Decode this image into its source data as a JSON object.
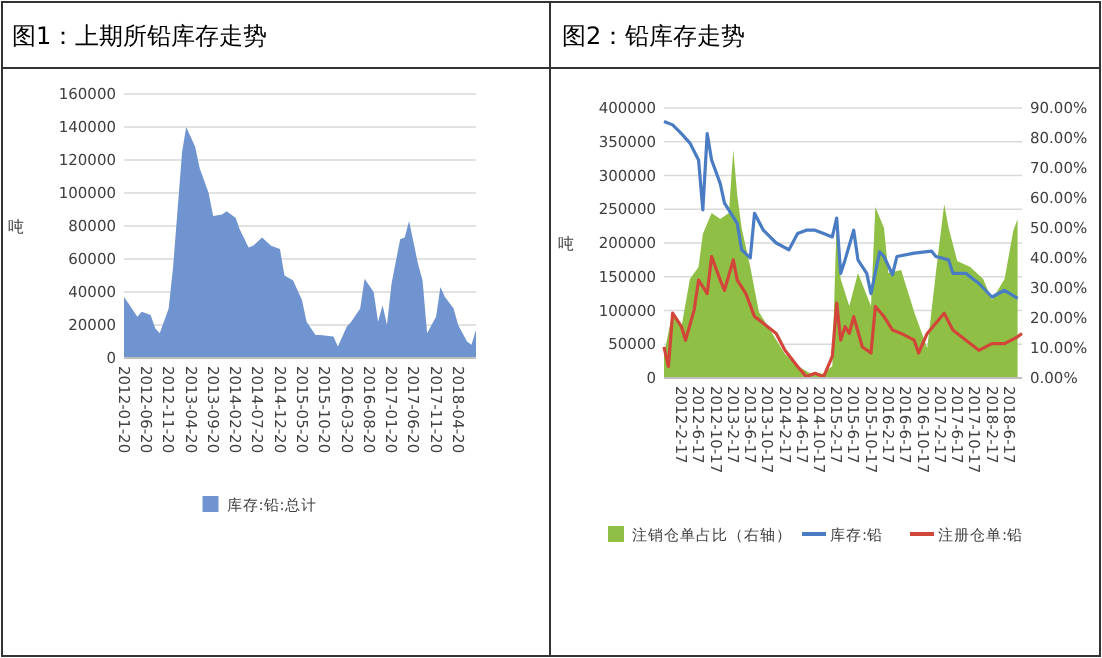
{
  "chart_data": [
    {
      "type": "area",
      "title": "图1：上期所铅库存走势",
      "ylabel": "吨",
      "xlim": [
        "2012-01-20",
        "2018-08-20"
      ],
      "ylim": [
        0,
        160000
      ],
      "yticks": [
        0,
        20000,
        40000,
        60000,
        80000,
        100000,
        120000,
        140000,
        160000
      ],
      "xticks": [
        {
          "value": "2012-01-20",
          "label": "2012-01-20"
        },
        {
          "value": "2012-06-20",
          "label": "2012-06-20"
        },
        {
          "value": "2012-11-20",
          "label": "2012-11-20"
        },
        {
          "value": "2013-04-20",
          "label": "2013-04-20"
        },
        {
          "value": "2013-09-20",
          "label": "2013-09-20"
        },
        {
          "value": "2014-02-20",
          "label": "2014-02-20"
        },
        {
          "value": "2014-07-20",
          "label": "2014-07-20"
        },
        {
          "value": "2014-12-20",
          "label": "2014-12-20"
        },
        {
          "value": "2015-05-20",
          "label": "2015-05-20"
        },
        {
          "value": "2015-10-20",
          "label": "2015-10-20"
        },
        {
          "value": "2016-03-20",
          "label": "2016-03-20"
        },
        {
          "value": "2016-08-20",
          "label": "2016-08-20"
        },
        {
          "value": "2017-01-20",
          "label": "2017-01-20"
        },
        {
          "value": "2017-06-20",
          "label": "2017-06-20"
        },
        {
          "value": "2017-11-20",
          "label": "2017-11-20"
        },
        {
          "value": "2018-04-20",
          "label": "2018-04-20"
        }
      ],
      "grid": "y",
      "legend": "bottom",
      "series": [
        {
          "name": "库存:铅:总计",
          "color": "#6f94cf",
          "x": [
            "2012-01-20",
            "2012-02-20",
            "2012-04-20",
            "2012-05-20",
            "2012-07-20",
            "2012-08-20",
            "2012-09-20",
            "2012-11-20",
            "2012-12-20",
            "2013-01-20",
            "2013-02-20",
            "2013-03-20",
            "2013-05-20",
            "2013-06-20",
            "2013-08-20",
            "2013-09-20",
            "2013-11-20",
            "2013-12-20",
            "2014-02-20",
            "2014-03-20",
            "2014-05-20",
            "2014-06-20",
            "2014-08-20",
            "2014-10-20",
            "2014-12-20",
            "2015-01-20",
            "2015-03-20",
            "2015-05-20",
            "2015-06-20",
            "2015-08-20",
            "2015-09-20",
            "2015-12-20",
            "2016-01-20",
            "2016-03-20",
            "2016-04-20",
            "2016-06-20",
            "2016-07-20",
            "2016-09-20",
            "2016-10-20",
            "2016-11-20",
            "2016-12-20",
            "2017-01-20",
            "2017-03-20",
            "2017-04-20",
            "2017-05-20",
            "2017-07-20",
            "2017-08-20",
            "2017-09-20",
            "2017-11-20",
            "2017-12-20",
            "2018-01-20",
            "2018-03-20",
            "2018-04-20",
            "2018-06-20",
            "2018-07-20",
            "2018-08-20"
          ],
          "values": [
            37000,
            33000,
            25000,
            28000,
            26000,
            18000,
            15000,
            30000,
            55000,
            90000,
            125000,
            140000,
            128000,
            115000,
            100000,
            86000,
            87000,
            89000,
            85000,
            78000,
            67000,
            68000,
            73000,
            68000,
            66000,
            50000,
            47000,
            35000,
            22000,
            14000,
            14000,
            13000,
            7000,
            19000,
            22000,
            30000,
            48000,
            40000,
            22000,
            32000,
            20000,
            45000,
            72000,
            73000,
            83000,
            57000,
            47000,
            15000,
            25000,
            43000,
            37000,
            30000,
            20000,
            10000,
            8000,
            17000
          ]
        }
      ]
    },
    {
      "type": "line",
      "title": "图2：铅库存走势",
      "ylabel": "吨",
      "xlim": [
        "2011-10-17",
        "2018-09-17"
      ],
      "ylim": [
        0,
        400000
      ],
      "yticks": [
        0,
        50000,
        100000,
        150000,
        200000,
        250000,
        300000,
        350000,
        400000
      ],
      "y2lim": [
        0,
        90
      ],
      "y2ticks": [
        {
          "value": 0,
          "label": "0.00%"
        },
        {
          "value": 10,
          "label": "10.00%"
        },
        {
          "value": 20,
          "label": "20.00%"
        },
        {
          "value": 30,
          "label": "30.00%"
        },
        {
          "value": 40,
          "label": "40.00%"
        },
        {
          "value": 50,
          "label": "50.00%"
        },
        {
          "value": 60,
          "label": "60.00%"
        },
        {
          "value": 70,
          "label": "70.00%"
        },
        {
          "value": 80,
          "label": "80.00%"
        },
        {
          "value": 90,
          "label": "90.00%"
        }
      ],
      "xticks": [
        {
          "value": "2012-02-17",
          "label": "2012-2-17"
        },
        {
          "value": "2012-06-17",
          "label": "2012-6-17"
        },
        {
          "value": "2012-10-17",
          "label": "2012-10-17"
        },
        {
          "value": "2013-02-17",
          "label": "2013-2-17"
        },
        {
          "value": "2013-06-17",
          "label": "2013-6-17"
        },
        {
          "value": "2013-10-17",
          "label": "2013-10-17"
        },
        {
          "value": "2014-02-17",
          "label": "2014-2-17"
        },
        {
          "value": "2014-06-17",
          "label": "2014-6-17"
        },
        {
          "value": "2014-10-17",
          "label": "2014-10-17"
        },
        {
          "value": "2015-02-17",
          "label": "2015-2-17"
        },
        {
          "value": "2015-06-17",
          "label": "2015-6-17"
        },
        {
          "value": "2015-10-17",
          "label": "2015-10-17"
        },
        {
          "value": "2016-02-17",
          "label": "2016-2-17"
        },
        {
          "value": "2016-06-17",
          "label": "2016-6-17"
        },
        {
          "value": "2016-10-17",
          "label": "2016-10-17"
        },
        {
          "value": "2017-02-17",
          "label": "2017-2-17"
        },
        {
          "value": "2017-06-17",
          "label": "2017-6-17"
        },
        {
          "value": "2017-10-17",
          "label": "2017-10-17"
        },
        {
          "value": "2018-02-17",
          "label": "2018-2-17"
        },
        {
          "value": "2018-06-17",
          "label": "2018-6-17"
        }
      ],
      "grid": "y",
      "legend": "bottom",
      "series": [
        {
          "name": "注销仓单占比（右轴）",
          "type": "area",
          "axis": "y2",
          "color": "#8fc045",
          "x": [
            "2011-10-17",
            "2011-12-17",
            "2012-02-17",
            "2012-04-17",
            "2012-06-17",
            "2012-07-17",
            "2012-09-17",
            "2012-11-17",
            "2013-01-17",
            "2013-02-17",
            "2013-03-17",
            "2013-04-17",
            "2013-06-17",
            "2013-08-17",
            "2013-11-17",
            "2014-02-17",
            "2014-05-17",
            "2014-08-17",
            "2014-11-17",
            "2015-01-17",
            "2015-02-17",
            "2015-03-17",
            "2015-05-17",
            "2015-07-17",
            "2015-10-17",
            "2015-11-17",
            "2016-01-17",
            "2016-02-17",
            "2016-05-17",
            "2016-08-17",
            "2016-11-17",
            "2017-01-17",
            "2017-03-17",
            "2017-04-17",
            "2017-06-17",
            "2017-09-17",
            "2017-12-17",
            "2018-02-17",
            "2018-05-17",
            "2018-07-17",
            "2018-08-17"
          ],
          "values": [
            8,
            22,
            17,
            33,
            37,
            48,
            55,
            53,
            55,
            76,
            61,
            50,
            37,
            22,
            15,
            8,
            4,
            1.5,
            1.5,
            4,
            53,
            33,
            24,
            35,
            24,
            57,
            50,
            35,
            36,
            22,
            10,
            35,
            58,
            50,
            39,
            37,
            33,
            26,
            33,
            49,
            53
          ]
        },
        {
          "name": "库存:铅",
          "color": "#4a7cc4",
          "x": [
            "2011-10-17",
            "2011-12-17",
            "2012-02-17",
            "2012-04-17",
            "2012-06-17",
            "2012-07-17",
            "2012-08-17",
            "2012-09-17",
            "2012-11-17",
            "2012-12-17",
            "2013-03-17",
            "2013-04-17",
            "2013-06-17",
            "2013-07-17",
            "2013-09-17",
            "2013-12-17",
            "2014-03-17",
            "2014-05-17",
            "2014-07-17",
            "2014-09-17",
            "2014-11-17",
            "2015-01-17",
            "2015-02-17",
            "2015-03-17",
            "2015-04-17",
            "2015-06-17",
            "2015-07-17",
            "2015-09-17",
            "2015-10-17",
            "2015-12-17",
            "2016-01-17",
            "2016-03-17",
            "2016-04-17",
            "2016-08-17",
            "2016-12-17",
            "2017-01-17",
            "2017-04-17",
            "2017-05-17",
            "2017-08-17",
            "2017-11-17",
            "2018-02-17",
            "2018-05-17",
            "2018-08-17"
          ],
          "values": [
            380000,
            375000,
            362000,
            348000,
            323000,
            249000,
            362000,
            323000,
            288000,
            259000,
            229000,
            190000,
            178000,
            244000,
            219000,
            200000,
            190000,
            214000,
            219000,
            219000,
            214000,
            209000,
            237000,
            155000,
            175000,
            219000,
            175000,
            155000,
            125000,
            187000,
            180000,
            153000,
            180000,
            185000,
            188000,
            180000,
            175000,
            155000,
            155000,
            140000,
            120000,
            130000,
            118000
          ]
        },
        {
          "name": "注册仓单:铅",
          "color": "#d2463a",
          "x": [
            "2011-10-17",
            "2011-11-17",
            "2011-12-17",
            "2012-02-17",
            "2012-03-17",
            "2012-05-17",
            "2012-06-17",
            "2012-08-17",
            "2012-09-17",
            "2012-11-17",
            "2012-12-17",
            "2013-02-17",
            "2013-03-17",
            "2013-05-17",
            "2013-07-17",
            "2013-09-17",
            "2013-12-17",
            "2014-02-17",
            "2014-05-17",
            "2014-07-17",
            "2014-09-17",
            "2014-11-17",
            "2015-01-17",
            "2015-02-17",
            "2015-03-17",
            "2015-04-17",
            "2015-05-17",
            "2015-06-17",
            "2015-08-17",
            "2015-10-17",
            "2015-11-17",
            "2016-01-17",
            "2016-03-17",
            "2016-05-17",
            "2016-08-17",
            "2016-09-17",
            "2016-11-17",
            "2017-03-17",
            "2017-05-17",
            "2017-08-17",
            "2017-11-17",
            "2018-02-17",
            "2018-05-17",
            "2018-08-17",
            "2018-09-17"
          ],
          "values": [
            46000,
            17000,
            96000,
            76000,
            56000,
            101000,
            145000,
            125000,
            180000,
            145000,
            130000,
            175000,
            145000,
            125000,
            91000,
            81000,
            66000,
            41000,
            17000,
            2000,
            7000,
            2000,
            32000,
            111000,
            56000,
            76000,
            66000,
            91000,
            46000,
            37000,
            106000,
            91000,
            71000,
            66000,
            56000,
            37000,
            66000,
            96000,
            71000,
            56000,
            41000,
            51000,
            51000,
            61000,
            66000
          ]
        }
      ]
    }
  ]
}
